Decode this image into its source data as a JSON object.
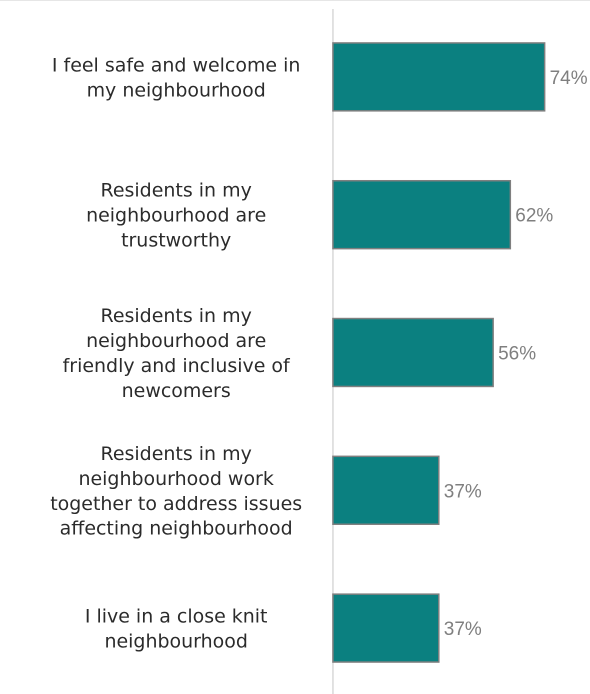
{
  "chart_data": {
    "type": "bar",
    "orientation": "horizontal",
    "categories": [
      [
        "I feel safe and welcome in",
        "my neighbourhood"
      ],
      [
        "Residents in my",
        "neighbourhood are",
        "trustworthy"
      ],
      [
        "Residents in my",
        "neighbourhood are",
        "friendly and inclusive of",
        "newcomers"
      ],
      [
        "Residents in my",
        "neighbourhood work",
        "together to address issues",
        "affecting neighbourhood"
      ],
      [
        "I live in a close knit",
        "neighbourhood"
      ]
    ],
    "values": [
      74,
      62,
      56,
      37,
      37
    ],
    "data_labels": [
      "74%",
      "62%",
      "56%",
      "37%",
      "37%"
    ],
    "xlim": [
      0,
      100
    ],
    "title": "",
    "xlabel": "",
    "ylabel": "",
    "grid": false,
    "legend": "none",
    "colors": {
      "bar": "#0b8080",
      "bar_border": "#7f7f7f",
      "axis": "#d9d9d9",
      "label_text": "#2b2b2b",
      "value_text": "#7f7f7f"
    }
  }
}
